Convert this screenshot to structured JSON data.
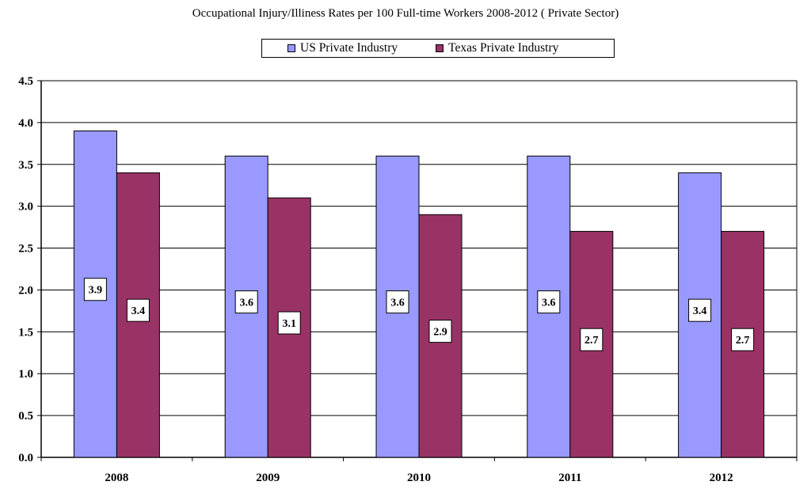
{
  "chart_data": {
    "type": "bar",
    "title": "Occupational Injury/Illiness Rates per 100 Full-time Workers 2008-2012 ( Private Sector)",
    "categories": [
      "2008",
      "2009",
      "2010",
      "2011",
      "2012"
    ],
    "series": [
      {
        "name": "US Private Industry",
        "color": "#9999ff",
        "values": [
          3.9,
          3.6,
          3.6,
          3.6,
          3.4
        ],
        "labels": [
          "3.9",
          "3.6",
          "3.6",
          "3.6",
          "3.4"
        ]
      },
      {
        "name": "Texas Private Industry",
        "color": "#993366",
        "values": [
          3.4,
          3.1,
          2.9,
          2.7,
          2.7
        ],
        "labels": [
          "3.4",
          "3.1",
          "2.9",
          "2.7",
          "2.7"
        ]
      }
    ],
    "xlabel": "",
    "ylabel": "",
    "ylim": [
      0,
      4.5
    ],
    "yticks": [
      "0.0",
      "0.5",
      "1.0",
      "1.5",
      "2.0",
      "2.5",
      "3.0",
      "3.5",
      "4.0",
      "4.5"
    ],
    "grid": true,
    "legend_position": "top"
  }
}
